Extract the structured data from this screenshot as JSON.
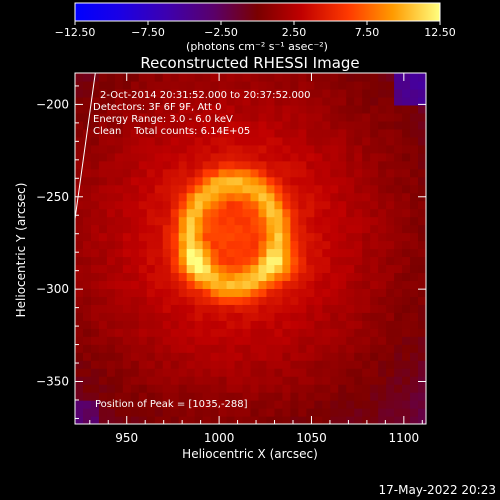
{
  "chart_data": {
    "type": "heatmap",
    "title": "Reconstructed RHESSI Image",
    "xlabel": "Heliocentric X (arcsec)",
    "ylabel": "Heliocentric Y (arcsec)",
    "xlim": [
      922,
      1112
    ],
    "ylim": [
      -373,
      -183
    ],
    "x_ticks": [
      950,
      1000,
      1050,
      1100
    ],
    "y_ticks": [
      -200,
      -250,
      -300,
      -350
    ],
    "colorbar": {
      "range": [
        -12.5,
        12.5
      ],
      "ticks": [
        "−12.50",
        "−7.50",
        "−2.50",
        "2.50",
        "7.50",
        "12.50"
      ],
      "label": "(photons cm⁻² s⁻¹ asec⁻²)",
      "colormap": "rhessi-rainbow"
    },
    "annotations": [
      "2-Oct-2014 20:31:52.000 to 20:37:52.000",
      "Detectors: 3F 6F 9F, Att 0",
      "Energy Range: 3.0 - 6.0 keV",
      "Clean    Total counts: 6.14E+05"
    ],
    "peak_label": "Position of Peak = [1035,-288]",
    "peak": [
      1035,
      -288
    ],
    "source": {
      "shape": "ring",
      "center": [
        1008,
        -270
      ],
      "radius_x": 24,
      "radius_y": 28,
      "ring_width": 7,
      "brightest_points": [
        [
          1035,
          -288
        ],
        [
          986,
          -285
        ]
      ]
    },
    "background_level": 5.5,
    "limb_line": [
      [
        933,
        -183
      ],
      [
        922,
        -262
      ]
    ]
  },
  "footer": {
    "date": "17-May-2022 20:23"
  },
  "colors": {
    "background": "#000000",
    "foreground": "#ffffff"
  }
}
